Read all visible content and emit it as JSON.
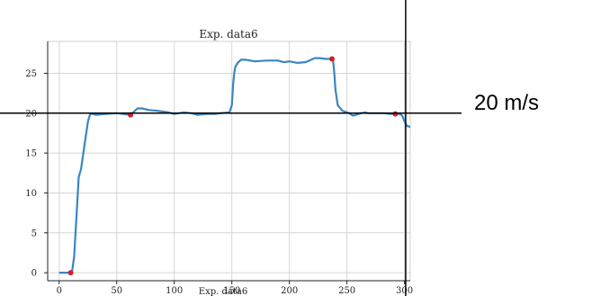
{
  "chart_data": {
    "type": "line",
    "title": "Exp. data6",
    "footer_label": "Exp. data6",
    "xlabel": "",
    "ylabel": "",
    "xlim": [
      -10,
      305
    ],
    "ylim": [
      -1,
      29
    ],
    "xticks": [
      "0",
      "50",
      "100",
      "150",
      "200",
      "250",
      "300"
    ],
    "xtick_values": [
      0,
      50,
      100,
      150,
      200,
      250,
      300
    ],
    "yticks": [
      "0",
      "5",
      "10",
      "15",
      "20",
      "25"
    ],
    "ytick_values": [
      0,
      5,
      10,
      15,
      20,
      25
    ],
    "grid": true,
    "series": [
      {
        "color": "#3a86c0",
        "x": [
          0,
          8,
          11,
          13,
          15,
          17,
          19,
          22,
          25,
          27,
          29,
          32,
          40,
          50,
          62,
          65,
          68,
          72,
          78,
          85,
          90,
          95,
          100,
          108,
          115,
          120,
          128,
          135,
          140,
          148,
          150,
          151,
          152,
          153,
          155,
          158,
          162,
          170,
          180,
          190,
          195,
          200,
          207,
          214,
          222,
          226,
          232,
          236,
          238,
          239,
          240,
          242,
          246,
          252,
          255,
          258,
          262,
          266,
          268,
          270,
          276,
          282,
          288,
          292,
          296,
          298,
          300,
          302,
          305
        ],
        "y": [
          0,
          0,
          0,
          2,
          7,
          12,
          13,
          16,
          19,
          19.9,
          19.9,
          19.8,
          19.9,
          20,
          19.8,
          20.2,
          20.6,
          20.6,
          20.4,
          20.3,
          20.2,
          20.1,
          19.9,
          20.1,
          20.0,
          19.8,
          19.9,
          19.9,
          20.0,
          20.1,
          21.0,
          23.5,
          25.0,
          25.8,
          26.3,
          26.7,
          26.7,
          26.5,
          26.6,
          26.6,
          26.4,
          26.5,
          26.3,
          26.4,
          26.9,
          26.9,
          26.8,
          26.8,
          26.5,
          25.0,
          23.0,
          21.0,
          20.3,
          20.0,
          19.7,
          19.8,
          20.0,
          20.1,
          20.0,
          20.0,
          20.0,
          20.0,
          19.9,
          19.9,
          19.9,
          19.7,
          19.0,
          18.4,
          18.3
        ]
      }
    ],
    "markers": {
      "color": "#d11f2f",
      "points": [
        {
          "x": 10,
          "y": 0
        },
        {
          "x": 62,
          "y": 19.8
        },
        {
          "x": 237,
          "y": 26.8
        },
        {
          "x": 292,
          "y": 19.9
        }
      ]
    },
    "annotations": {
      "reference_value": 20,
      "vertical_x": 301,
      "label": "20 m/s"
    }
  }
}
